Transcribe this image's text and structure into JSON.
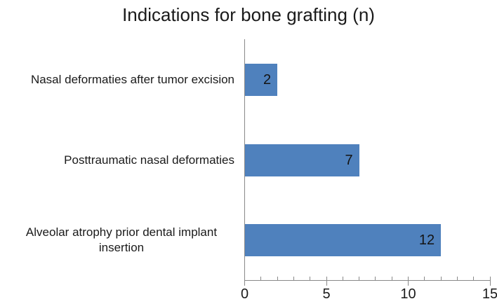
{
  "figure": {
    "background": "#ffffff"
  },
  "chart_data": {
    "type": "bar",
    "orientation": "horizontal",
    "title": "Indications for bone grafting (n)",
    "categories": [
      "Nasal deformaties after tumor excision",
      "Posttraumatic nasal deformaties",
      "Alveolar atrophy prior dental implant insertion"
    ],
    "values": [
      2,
      7,
      12
    ],
    "data_labels": [
      "2",
      "7",
      "12"
    ],
    "data_label_position": "inside-end",
    "xlabel": "",
    "ylabel": "",
    "xlim": [
      0,
      15
    ],
    "major_ticks": [
      0,
      5,
      10,
      15
    ],
    "minor_tick_interval": 1,
    "grid": false,
    "legend": false,
    "bar_color": "#4f81bd",
    "axis_color": "#898989",
    "text_color": "#1a1a1a"
  }
}
